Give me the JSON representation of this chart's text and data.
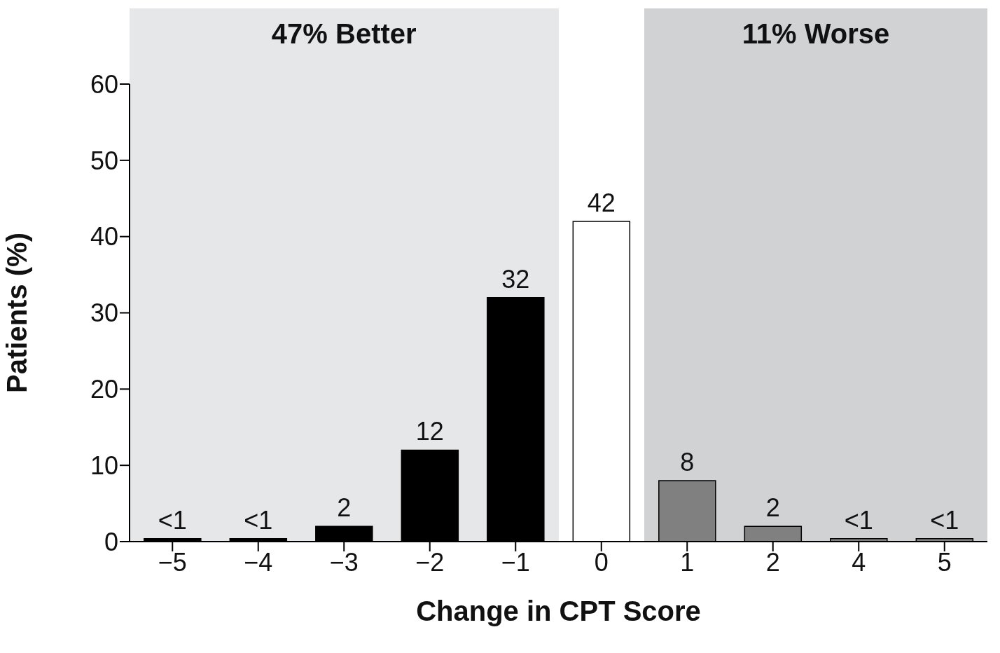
{
  "chart_data": {
    "type": "bar",
    "xlabel": "Change in CPT Score",
    "ylabel": "Patients (%)",
    "categories": [
      "−5",
      "−4",
      "−3",
      "−2",
      "−1",
      "0",
      "1",
      "2",
      "4",
      "5"
    ],
    "values": [
      0.4,
      0.4,
      2,
      12,
      32,
      42,
      8,
      2,
      0.4,
      0.4
    ],
    "colors": [
      "#000000",
      "#000000",
      "#000000",
      "#000000",
      "#000000",
      "#ffffff",
      "#808080",
      "#808080",
      "#808080",
      "#808080"
    ],
    "value_labels": [
      "<1",
      "<1",
      "2",
      "12",
      "32",
      "42",
      "8",
      "2",
      "<1",
      "<1"
    ],
    "ylim": [
      0,
      60
    ],
    "yticks": [
      0,
      10,
      20,
      30,
      40,
      50,
      60
    ],
    "grid": false,
    "bands": [
      {
        "axis": "x",
        "from": "−5",
        "to": "−1",
        "label": "47% Better",
        "color": "#e6e7e9"
      },
      {
        "axis": "x",
        "from": "1",
        "to": "5",
        "label": "11% Worse",
        "color": "#d1d2d4"
      }
    ]
  }
}
